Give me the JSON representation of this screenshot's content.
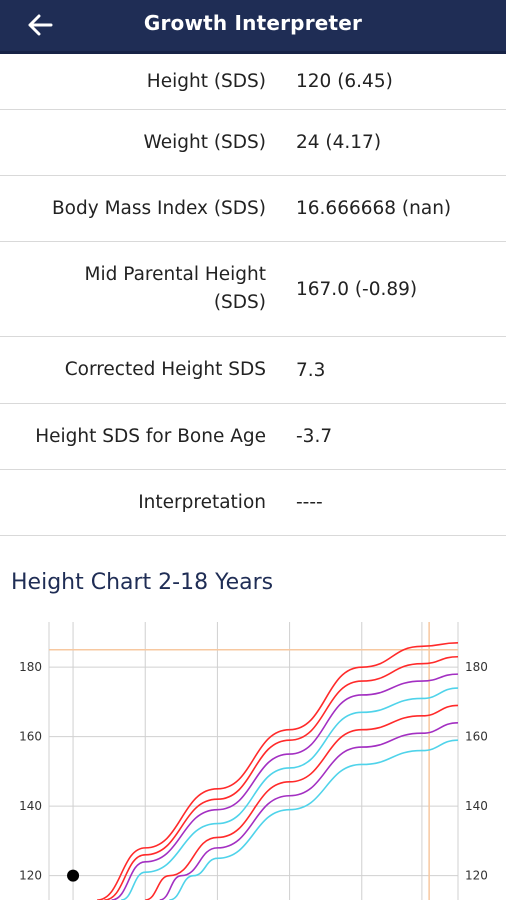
{
  "appbar": {
    "title": "Growth Interpreter",
    "back_icon": "arrow-left-icon"
  },
  "results": [
    {
      "label": "Height (SDS)",
      "value": "120 (6.45)"
    },
    {
      "label": "Weight (SDS)",
      "value": "24 (4.17)"
    },
    {
      "label": "Body Mass Index (SDS)",
      "value": "16.666668 (nan)"
    },
    {
      "label": "Mid Parental Height (SDS)",
      "value": "167.0 (-0.89)"
    },
    {
      "label": "Corrected Height SDS",
      "value": "7.3"
    },
    {
      "label": "Height SDS for Bone Age",
      "value": "-3.7"
    },
    {
      "label": "Interpretation",
      "value": "----"
    }
  ],
  "chart_title": "Height Chart 2-18 Years",
  "chart_data": {
    "type": "line",
    "title": "Height Chart 2-18 Years",
    "x_range": [
      1,
      18
    ],
    "y_range": [
      113,
      193
    ],
    "yticks_left": [
      120,
      140,
      160,
      180
    ],
    "yticks_right": [
      120,
      140,
      160,
      180
    ],
    "grid": true,
    "target_height": 185,
    "target_line_color": "#f7c8a0",
    "point": {
      "x": 2,
      "y": 120
    },
    "series": [
      {
        "color": "#ff2a2a",
        "points": [
          [
            3,
            113
          ],
          [
            5,
            128
          ],
          [
            8,
            145
          ],
          [
            11,
            162
          ],
          [
            14,
            180
          ],
          [
            16.5,
            186
          ],
          [
            18,
            187
          ]
        ]
      },
      {
        "color": "#ff2a2a",
        "points": [
          [
            3.3,
            113
          ],
          [
            5,
            126
          ],
          [
            8,
            142
          ],
          [
            11,
            159
          ],
          [
            14,
            176
          ],
          [
            16.5,
            181
          ],
          [
            18,
            183
          ]
        ]
      },
      {
        "color": "#a32fc2",
        "points": [
          [
            3.6,
            113
          ],
          [
            5,
            124
          ],
          [
            8,
            139
          ],
          [
            11,
            155
          ],
          [
            14,
            172
          ],
          [
            16.5,
            176
          ],
          [
            18,
            178
          ]
        ]
      },
      {
        "color": "#4fd3ea",
        "points": [
          [
            4,
            113
          ],
          [
            5,
            121
          ],
          [
            8,
            135
          ],
          [
            11,
            151
          ],
          [
            14,
            167
          ],
          [
            16.5,
            171
          ],
          [
            18,
            174
          ]
        ]
      },
      {
        "color": "#ff2a2a",
        "points": [
          [
            5,
            113
          ],
          [
            6,
            120
          ],
          [
            8,
            131
          ],
          [
            11,
            147
          ],
          [
            14,
            162
          ],
          [
            16.5,
            166
          ],
          [
            18,
            169
          ]
        ]
      },
      {
        "color": "#a32fc2",
        "points": [
          [
            5.6,
            113
          ],
          [
            6.5,
            120
          ],
          [
            8,
            128
          ],
          [
            11,
            143
          ],
          [
            14,
            157
          ],
          [
            16.5,
            161
          ],
          [
            18,
            164
          ]
        ]
      },
      {
        "color": "#4fd3ea",
        "points": [
          [
            6,
            113
          ],
          [
            7,
            120
          ],
          [
            8,
            125
          ],
          [
            11,
            139
          ],
          [
            14,
            152
          ],
          [
            16.5,
            156
          ],
          [
            18,
            159
          ]
        ]
      }
    ]
  }
}
